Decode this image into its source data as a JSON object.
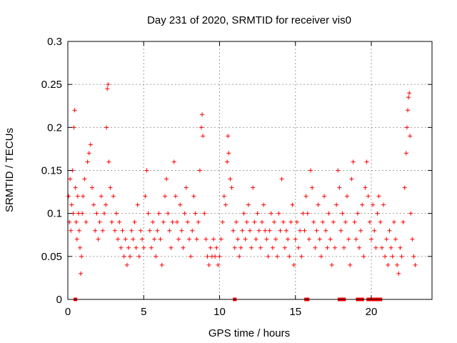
{
  "chart_data": {
    "type": "scatter",
    "title": "Day 231 of 2020, SRMTID for receiver vis0",
    "xlabel": "GPS time / hours",
    "ylabel": "SRMTID / TECUs",
    "xlim": [
      0,
      24
    ],
    "ylim": [
      0,
      0.3
    ],
    "xticks": [
      0,
      5,
      10,
      15,
      20
    ],
    "xtick_labels": [
      "0",
      "5",
      "10",
      "15",
      "20"
    ],
    "yticks": [
      0,
      0.05,
      0.1,
      0.15,
      0.2,
      0.25,
      0.3
    ],
    "ytick_labels": [
      "0",
      "0.05",
      "0.1",
      "0.15",
      "0.2",
      "0.25",
      "0.3"
    ],
    "grid": true,
    "marker": "+",
    "series_color": "#ff0000",
    "series": [
      {
        "name": "SRMTID",
        "points": [
          [
            0.05,
            0.12
          ],
          [
            0.1,
            0.09
          ],
          [
            0.15,
            0.14
          ],
          [
            0.2,
            0.08
          ],
          [
            0.25,
            0.11
          ],
          [
            0.3,
            0.15
          ],
          [
            0.35,
            0.1
          ],
          [
            0.4,
            0.2
          ],
          [
            0.45,
            0.22
          ],
          [
            0.5,
            0.13
          ],
          [
            0.55,
            0.09
          ],
          [
            0.6,
            0.07
          ],
          [
            0.65,
            0.12
          ],
          [
            0.7,
            0.1
          ],
          [
            0.75,
            0.08
          ],
          [
            0.8,
            0.06
          ],
          [
            0.85,
            0.03
          ],
          [
            0.9,
            0.05
          ],
          [
            0.95,
            0.1
          ],
          [
            1.0,
            0.12
          ],
          [
            1.1,
            0.14
          ],
          [
            1.2,
            0.09
          ],
          [
            1.3,
            0.16
          ],
          [
            1.4,
            0.17
          ],
          [
            1.5,
            0.18
          ],
          [
            1.6,
            0.13
          ],
          [
            1.7,
            0.11
          ],
          [
            1.8,
            0.08
          ],
          [
            1.9,
            0.1
          ],
          [
            2.0,
            0.07
          ],
          [
            2.1,
            0.09
          ],
          [
            2.2,
            0.12
          ],
          [
            2.3,
            0.08
          ],
          [
            2.4,
            0.1
          ],
          [
            2.5,
            0.11
          ],
          [
            2.55,
            0.2
          ],
          [
            2.6,
            0.245
          ],
          [
            2.65,
            0.25
          ],
          [
            2.7,
            0.16
          ],
          [
            2.8,
            0.13
          ],
          [
            2.9,
            0.09
          ],
          [
            3.0,
            0.12
          ],
          [
            3.1,
            0.08
          ],
          [
            3.2,
            0.1
          ],
          [
            3.3,
            0.07
          ],
          [
            3.4,
            0.09
          ],
          [
            3.5,
            0.06
          ],
          [
            3.6,
            0.08
          ],
          [
            3.7,
            0.05
          ],
          [
            3.8,
            0.07
          ],
          [
            3.9,
            0.04
          ],
          [
            4.0,
            0.06
          ],
          [
            4.1,
            0.05
          ],
          [
            4.2,
            0.08
          ],
          [
            4.3,
            0.07
          ],
          [
            4.4,
            0.09
          ],
          [
            4.5,
            0.06
          ],
          [
            4.6,
            0.11
          ],
          [
            4.7,
            0.05
          ],
          [
            4.8,
            0.08
          ],
          [
            4.9,
            0.07
          ],
          [
            5.0,
            0.06
          ],
          [
            5.1,
            0.12
          ],
          [
            5.2,
            0.15
          ],
          [
            5.3,
            0.1
          ],
          [
            5.4,
            0.08
          ],
          [
            5.5,
            0.06
          ],
          [
            5.6,
            0.09
          ],
          [
            5.7,
            0.07
          ],
          [
            5.8,
            0.05
          ],
          [
            5.9,
            0.08
          ],
          [
            6.0,
            0.1
          ],
          [
            6.1,
            0.07
          ],
          [
            6.2,
            0.04
          ],
          [
            6.3,
            0.09
          ],
          [
            6.4,
            0.12
          ],
          [
            6.5,
            0.14
          ],
          [
            6.6,
            0.1
          ],
          [
            6.7,
            0.08
          ],
          [
            6.8,
            0.06
          ],
          [
            6.9,
            0.09
          ],
          [
            7.0,
            0.16
          ],
          [
            7.1,
            0.12
          ],
          [
            7.2,
            0.09
          ],
          [
            7.3,
            0.07
          ],
          [
            7.4,
            0.11
          ],
          [
            7.5,
            0.08
          ],
          [
            7.6,
            0.06
          ],
          [
            7.7,
            0.1
          ],
          [
            7.8,
            0.13
          ],
          [
            7.9,
            0.09
          ],
          [
            8.0,
            0.07
          ],
          [
            8.1,
            0.05
          ],
          [
            8.2,
            0.08
          ],
          [
            8.3,
            0.12
          ],
          [
            8.4,
            0.1
          ],
          [
            8.5,
            0.07
          ],
          [
            8.6,
            0.09
          ],
          [
            8.7,
            0.15
          ],
          [
            8.8,
            0.2
          ],
          [
            8.85,
            0.215
          ],
          [
            8.9,
            0.19
          ],
          [
            9.0,
            0.1
          ],
          [
            9.1,
            0.07
          ],
          [
            9.2,
            0.05
          ],
          [
            9.3,
            0.04
          ],
          [
            9.4,
            0.06
          ],
          [
            9.5,
            0.05
          ],
          [
            9.6,
            0.07
          ],
          [
            9.7,
            0.05
          ],
          [
            9.8,
            0.06
          ],
          [
            9.9,
            0.04
          ],
          [
            10.0,
            0.05
          ],
          [
            10.1,
            0.07
          ],
          [
            10.2,
            0.09
          ],
          [
            10.3,
            0.12
          ],
          [
            10.4,
            0.11
          ],
          [
            10.5,
            0.16
          ],
          [
            10.55,
            0.19
          ],
          [
            10.6,
            0.17
          ],
          [
            10.7,
            0.14
          ],
          [
            10.8,
            0.13
          ],
          [
            10.9,
            0.08
          ],
          [
            11.0,
            0.06
          ],
          [
            11.1,
            0.09
          ],
          [
            11.2,
            0.07
          ],
          [
            11.3,
            0.05
          ],
          [
            11.4,
            0.06
          ],
          [
            11.5,
            0.08
          ],
          [
            11.6,
            0.1
          ],
          [
            11.7,
            0.07
          ],
          [
            11.8,
            0.09
          ],
          [
            11.9,
            0.11
          ],
          [
            12.0,
            0.08
          ],
          [
            12.1,
            0.06
          ],
          [
            12.2,
            0.13
          ],
          [
            12.3,
            0.09
          ],
          [
            12.4,
            0.07
          ],
          [
            12.5,
            0.1
          ],
          [
            12.6,
            0.08
          ],
          [
            12.7,
            0.06
          ],
          [
            12.8,
            0.09
          ],
          [
            12.9,
            0.11
          ],
          [
            13.0,
            0.08
          ],
          [
            13.1,
            0.07
          ],
          [
            13.2,
            0.05
          ],
          [
            13.3,
            0.08
          ],
          [
            13.4,
            0.1
          ],
          [
            13.5,
            0.06
          ],
          [
            13.6,
            0.09
          ],
          [
            13.7,
            0.07
          ],
          [
            13.8,
            0.05
          ],
          [
            13.9,
            0.1
          ],
          [
            14.0,
            0.08
          ],
          [
            14.1,
            0.14
          ],
          [
            14.2,
            0.09
          ],
          [
            14.3,
            0.06
          ],
          [
            14.4,
            0.08
          ],
          [
            14.5,
            0.07
          ],
          [
            14.6,
            0.05
          ],
          [
            14.7,
            0.09
          ],
          [
            14.8,
            0.11
          ],
          [
            14.9,
            0.04
          ],
          [
            15.0,
            0.07
          ],
          [
            15.1,
            0.09
          ],
          [
            15.2,
            0.06
          ],
          [
            15.3,
            0.08
          ],
          [
            15.4,
            0.05
          ],
          [
            15.5,
            0.1
          ],
          [
            15.6,
            0.08
          ],
          [
            15.7,
            0.12
          ],
          [
            15.8,
            0.1
          ],
          [
            15.9,
            0.07
          ],
          [
            16.0,
            0.15
          ],
          [
            16.1,
            0.13
          ],
          [
            16.2,
            0.09
          ],
          [
            16.3,
            0.06
          ],
          [
            16.4,
            0.08
          ],
          [
            16.5,
            0.11
          ],
          [
            16.6,
            0.07
          ],
          [
            16.7,
            0.05
          ],
          [
            16.8,
            0.09
          ],
          [
            16.9,
            0.12
          ],
          [
            17.0,
            0.08
          ],
          [
            17.1,
            0.06
          ],
          [
            17.2,
            0.1
          ],
          [
            17.3,
            0.07
          ],
          [
            17.4,
            0.04
          ],
          [
            17.5,
            0.09
          ],
          [
            17.6,
            0.06
          ],
          [
            17.7,
            0.11
          ],
          [
            17.8,
            0.15
          ],
          [
            17.9,
            0.13
          ],
          [
            18.0,
            0.08
          ],
          [
            18.1,
            0.1
          ],
          [
            18.2,
            0.06
          ],
          [
            18.3,
            0.09
          ],
          [
            18.4,
            0.12
          ],
          [
            18.5,
            0.07
          ],
          [
            18.6,
            0.04
          ],
          [
            18.7,
            0.14
          ],
          [
            18.8,
            0.16
          ],
          [
            18.9,
            0.09
          ],
          [
            19.0,
            0.07
          ],
          [
            19.1,
            0.1
          ],
          [
            19.2,
            0.06
          ],
          [
            19.3,
            0.08
          ],
          [
            19.4,
            0.11
          ],
          [
            19.5,
            0.05
          ],
          [
            19.6,
            0.13
          ],
          [
            19.7,
            0.16
          ],
          [
            19.8,
            0.12
          ],
          [
            19.9,
            0.09
          ],
          [
            20.0,
            0.07
          ],
          [
            20.1,
            0.11
          ],
          [
            20.2,
            0.08
          ],
          [
            20.3,
            0.06
          ],
          [
            20.4,
            0.1
          ],
          [
            20.5,
            0.12
          ],
          [
            20.6,
            0.09
          ],
          [
            20.7,
            0.06
          ],
          [
            20.8,
            0.11
          ],
          [
            20.9,
            0.05
          ],
          [
            21.0,
            0.07
          ],
          [
            21.1,
            0.04
          ],
          [
            21.2,
            0.08
          ],
          [
            21.3,
            0.06
          ],
          [
            21.4,
            0.05
          ],
          [
            21.5,
            0.09
          ],
          [
            21.6,
            0.07
          ],
          [
            21.7,
            0.04
          ],
          [
            21.8,
            0.03
          ],
          [
            21.9,
            0.06
          ],
          [
            22.0,
            0.05
          ],
          [
            22.1,
            0.09
          ],
          [
            22.2,
            0.13
          ],
          [
            22.3,
            0.17
          ],
          [
            22.35,
            0.2
          ],
          [
            22.4,
            0.22
          ],
          [
            22.45,
            0.235
          ],
          [
            22.5,
            0.24
          ],
          [
            22.55,
            0.19
          ],
          [
            22.6,
            0.1
          ],
          [
            22.7,
            0.07
          ],
          [
            22.8,
            0.05
          ],
          [
            22.9,
            0.04
          ]
        ]
      }
    ],
    "zero_markers_x": [
      0.5,
      11.0,
      15.7,
      15.8,
      17.9,
      18.0,
      18.1,
      18.2,
      19.1,
      19.2,
      19.3,
      19.4,
      19.8,
      20.0,
      20.2,
      20.4,
      20.5,
      20.6
    ]
  }
}
